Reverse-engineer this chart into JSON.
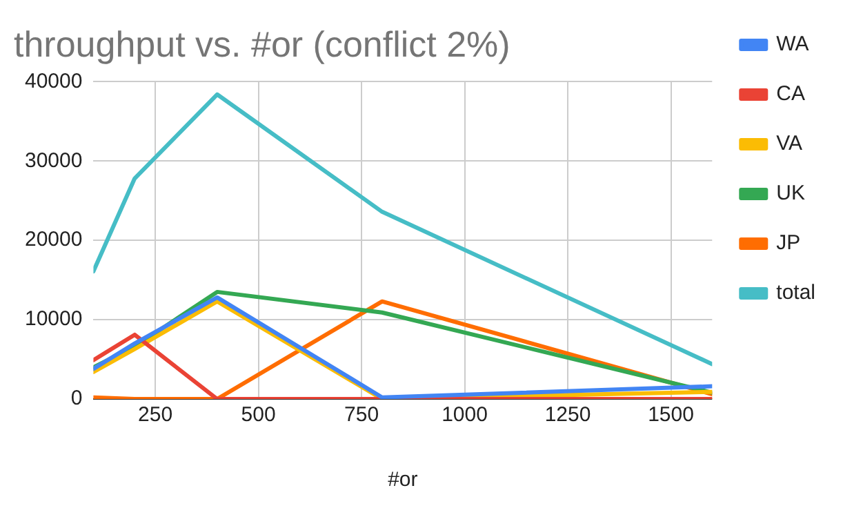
{
  "chart_data": {
    "type": "line",
    "title": "throughput vs. #or (conflict 2%)",
    "xlabel": "#or",
    "x": [
      100,
      200,
      400,
      800,
      1600
    ],
    "series": [
      {
        "name": "WA",
        "color": "#4285f4",
        "values": [
          3800,
          7000,
          12800,
          200,
          1600
        ]
      },
      {
        "name": "CA",
        "color": "#ea4335",
        "values": [
          4900,
          8100,
          0,
          0,
          0
        ]
      },
      {
        "name": "VA",
        "color": "#fbbc04",
        "values": [
          3400,
          6300,
          12300,
          0,
          900
        ]
      },
      {
        "name": "UK",
        "color": "#34a853",
        "values": [
          4000,
          6600,
          13500,
          10900,
          800
        ]
      },
      {
        "name": "JP",
        "color": "#ff6d01",
        "values": [
          200,
          0,
          0,
          12300,
          600
        ]
      },
      {
        "name": "total",
        "color": "#46bdc6",
        "values": [
          16100,
          27800,
          38400,
          23600,
          4400
        ]
      }
    ],
    "xlim": [
      100,
      1600
    ],
    "xticks": [
      250,
      500,
      750,
      1000,
      1250,
      1500
    ],
    "ylim": [
      0,
      40000
    ],
    "yticks": [
      0,
      10000,
      20000,
      30000,
      40000
    ],
    "grid": true,
    "legend": "right",
    "marker": "none",
    "line_style": "solid"
  }
}
